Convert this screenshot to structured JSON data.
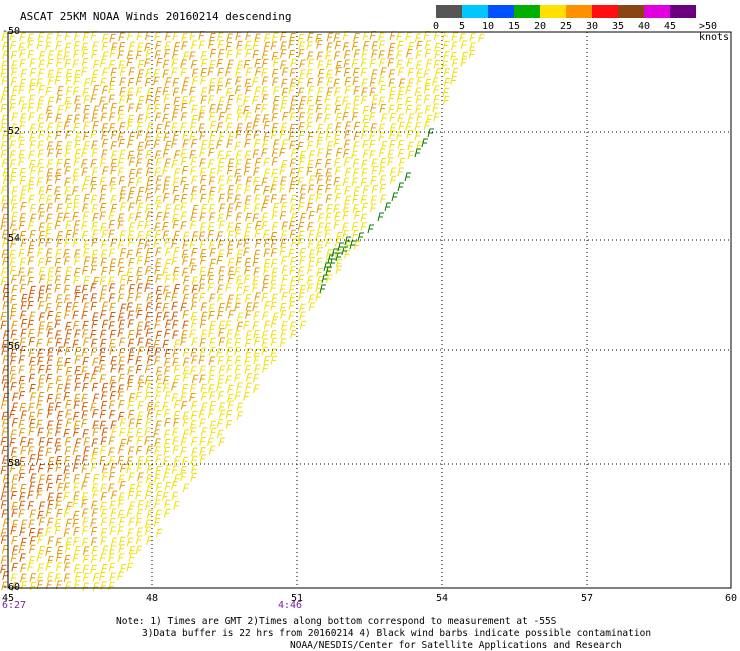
{
  "title": "ASCAT 25KM NOAA Winds 20160214 descending",
  "colorbar": {
    "colors": [
      "#555555",
      "#00c8ff",
      "#0050ff",
      "#00b000",
      "#ffe000",
      "#ff9000",
      "#ff1010",
      "#8b4513",
      "#e000e0",
      "#6a0080"
    ],
    "labels": [
      "0",
      "5",
      "10",
      "15",
      "20",
      "25",
      "30",
      "35",
      "40",
      "45",
      ">50 knots"
    ]
  },
  "axes": {
    "y_ticks": [
      "-50",
      "-52",
      "-54",
      "-56",
      "-58",
      "-60"
    ],
    "x_ticks": [
      "45",
      "48",
      "51",
      "54",
      "57",
      "60"
    ],
    "grid": true
  },
  "times": [
    "6:27",
    "4:46"
  ],
  "notes": [
    "Note: 1) Times are GMT 2)Times along bottom correspond to measurement at -55S",
    "3)Data buffer is 22 hrs from 20160214 4) Black wind barbs indicate possible contamination",
    "NOAA/NESDIS/Center for Satellite Applications and Research"
  ],
  "barb_colors": {
    "yellow": "#f0e000",
    "orange": "#e39a00",
    "dark_orange": "#d25a00",
    "green": "#007a00"
  }
}
